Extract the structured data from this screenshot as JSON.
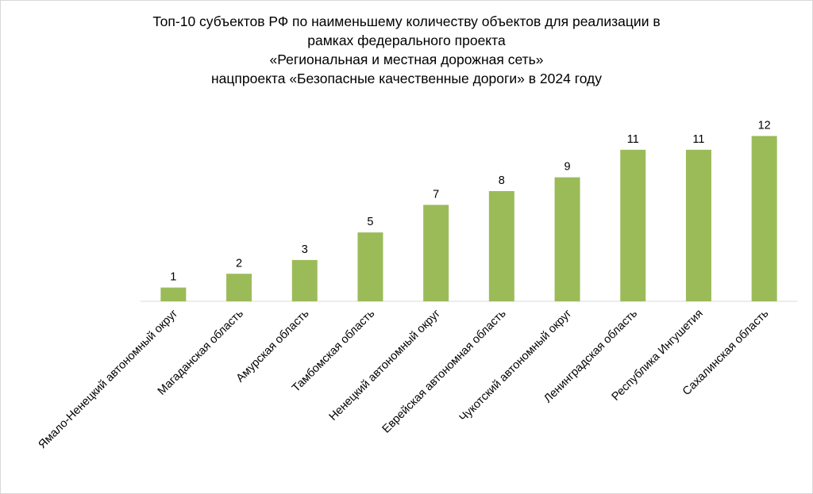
{
  "chart_data": {
    "type": "bar",
    "title_lines": [
      "Топ-10 субъектов РФ по наименьшему количеству объектов для реализации в",
      "рамках федерального проекта",
      "«Региональная и местная дорожная сеть»",
      "нацпроекта «Безопасные качественные дороги» в 2024 году"
    ],
    "categories": [
      "Ямало-Ненецкий автономный округ",
      "Магаданская область",
      "Амурская область",
      "Тамбомская область",
      "Ненецкий автономный округ",
      "Еврейская автономная область",
      "Чукотский автономный округ",
      "Ленинградская область",
      "Республика Ингушетия",
      "Сахалинская область"
    ],
    "values": [
      1,
      2,
      3,
      5,
      7,
      8,
      9,
      11,
      11,
      12
    ],
    "data_labels": [
      "1",
      "2",
      "3",
      "5",
      "7",
      "8",
      "9",
      "11",
      "11",
      "12"
    ],
    "ylim": [
      0,
      12
    ],
    "grid": false,
    "legend": "none",
    "colors": {
      "bar": "#9bbb59",
      "axis": "#d9d9d9",
      "text": "#000000"
    }
  }
}
